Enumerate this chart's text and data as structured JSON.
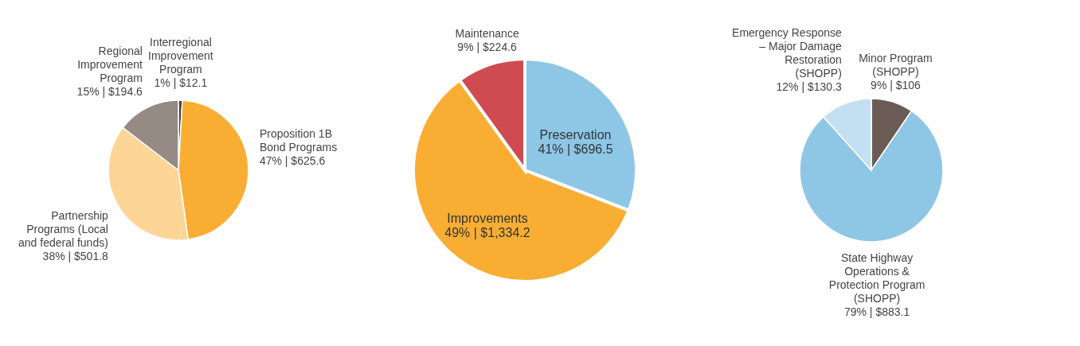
{
  "chart_data": [
    {
      "type": "pie",
      "categories": [
        "Interregional Improvement Program",
        "Proposition 1B Bond Programs",
        "Partnership Programs (Local and federal funds)",
        "Regional Improvement Program"
      ],
      "values": [
        12.1,
        625.6,
        501.8,
        194.6
      ],
      "colors": [
        "#4a3f3b",
        "#f9ae33",
        "#fdd597",
        "#958a84"
      ],
      "value_labels": [
        "1% | $12.1",
        "47% | $625.6",
        "38% | $501.8",
        "15% | $194.6"
      ]
    },
    {
      "type": "pie",
      "categories": [
        "Preservation",
        "Improvements",
        "Maintenance"
      ],
      "values": [
        696.5,
        1334.2,
        224.6
      ],
      "colors": [
        "#8ec6e6",
        "#f9ae33",
        "#cf4b52"
      ],
      "value_labels": [
        "41% | $696.5",
        "49% | $1,334.2",
        "9% | $224.6"
      ]
    },
    {
      "type": "pie",
      "categories": [
        "Minor Program (SHOPP)",
        "State Highway Operations & Protection Program (SHOPP)",
        "Emergency Response – Major Damage Restoration (SHOPP)"
      ],
      "values": [
        106,
        883.1,
        130.3
      ],
      "colors": [
        "#6b5b55",
        "#8ec6e6",
        "#c3e0f2"
      ],
      "value_labels": [
        "9% | $106",
        "79% | $883.1",
        "12% | $130.3"
      ]
    }
  ]
}
